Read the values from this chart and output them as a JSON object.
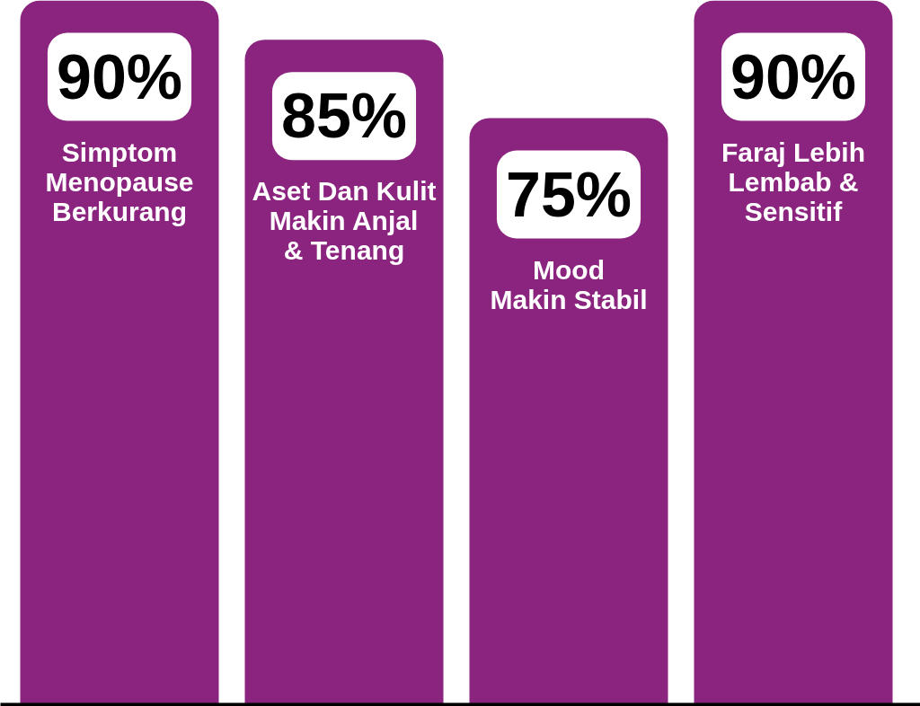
{
  "chart_data": {
    "type": "bar",
    "categories": [
      "Simptom\nMenopause\nBerkurang",
      "Aset Dan Kulit\nMakin Anjal\n& Tenang",
      "Mood\nMakin Stabil",
      "Faraj Lebih\nLembab &\nSensitif"
    ],
    "values": [
      90,
      85,
      75,
      90
    ],
    "value_labels": [
      "90%",
      "85%",
      "75%",
      "90%"
    ],
    "color": "#8b247e"
  }
}
